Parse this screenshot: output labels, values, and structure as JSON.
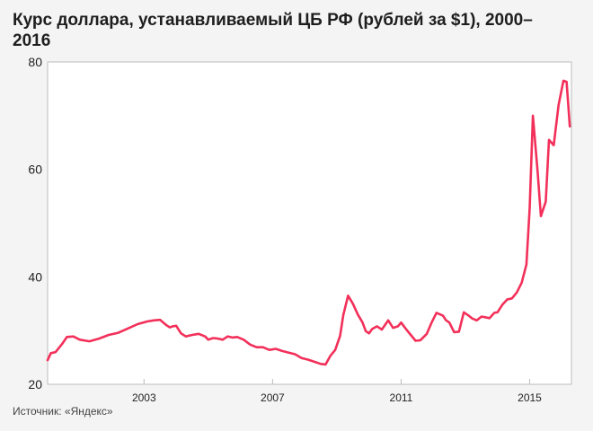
{
  "chart_data": {
    "type": "line",
    "title": "Курс доллара, устанавливаемый ЦБ РФ (рублей за $1), 2000–2016",
    "xlabel": "",
    "ylabel": "",
    "ylim": [
      20,
      80
    ],
    "xlim": [
      2000.0,
      2016.3
    ],
    "yticks": [
      "20",
      "40",
      "60",
      "80"
    ],
    "xticks": [
      "2003",
      "2007",
      "2011",
      "2015"
    ],
    "grid": false,
    "legend": "none",
    "line_color": "#f2305a",
    "x": [
      2000.0,
      2000.1,
      2000.25,
      2000.45,
      2000.6,
      2000.8,
      2001.0,
      2001.3,
      2001.6,
      2001.9,
      2002.2,
      2002.5,
      2002.8,
      2003.1,
      2003.3,
      2003.5,
      2003.7,
      2003.8,
      2003.9,
      2004.0,
      2004.15,
      2004.3,
      2004.5,
      2004.7,
      2004.9,
      2005.0,
      2005.15,
      2005.3,
      2005.45,
      2005.6,
      2005.75,
      2005.9,
      2006.1,
      2006.3,
      2006.5,
      2006.7,
      2006.9,
      2007.1,
      2007.3,
      2007.5,
      2007.7,
      2007.9,
      2008.1,
      2008.3,
      2008.5,
      2008.65,
      2008.8,
      2008.95,
      2009.1,
      2009.2,
      2009.35,
      2009.5,
      2009.65,
      2009.8,
      2009.9,
      2010.0,
      2010.1,
      2010.25,
      2010.4,
      2010.6,
      2010.75,
      2010.9,
      2011.0,
      2011.15,
      2011.3,
      2011.45,
      2011.6,
      2011.8,
      2011.95,
      2012.1,
      2012.3,
      2012.4,
      2012.5,
      2012.65,
      2012.8,
      2012.95,
      2013.1,
      2013.2,
      2013.35,
      2013.5,
      2013.6,
      2013.75,
      2013.9,
      2014.0,
      2014.15,
      2014.3,
      2014.45,
      2014.6,
      2014.75,
      2014.9,
      2015.0,
      2015.1,
      2015.25,
      2015.35,
      2015.5,
      2015.6,
      2015.75,
      2015.9,
      2016.05,
      2016.15,
      2016.25
    ],
    "values": [
      24.5,
      25.8,
      26.0,
      27.5,
      28.8,
      28.9,
      28.3,
      28.0,
      28.5,
      29.2,
      29.6,
      30.4,
      31.2,
      31.7,
      31.9,
      32.0,
      31.0,
      30.6,
      30.8,
      30.9,
      29.5,
      28.9,
      29.2,
      29.4,
      28.9,
      28.3,
      28.6,
      28.5,
      28.3,
      28.9,
      28.7,
      28.8,
      28.3,
      27.4,
      26.9,
      26.9,
      26.4,
      26.6,
      26.2,
      25.9,
      25.6,
      24.9,
      24.6,
      24.2,
      23.8,
      23.7,
      25.3,
      26.4,
      29.0,
      32.9,
      36.5,
      35.0,
      33.0,
      31.5,
      29.9,
      29.5,
      30.3,
      30.8,
      30.2,
      31.9,
      30.5,
      30.8,
      31.5,
      30.3,
      29.2,
      28.1,
      28.2,
      29.4,
      31.5,
      33.3,
      32.8,
      31.9,
      31.5,
      29.7,
      29.8,
      33.4,
      32.8,
      32.3,
      31.9,
      32.6,
      32.5,
      32.3,
      33.3,
      33.4,
      34.8,
      35.8,
      36.0,
      37.1,
      38.9,
      42.3,
      52.7,
      70.0,
      59.5,
      51.3,
      54.0,
      65.5,
      64.5,
      72.0,
      76.5,
      76.3,
      68.0
    ]
  },
  "source": "Источник: «Яндекс»"
}
